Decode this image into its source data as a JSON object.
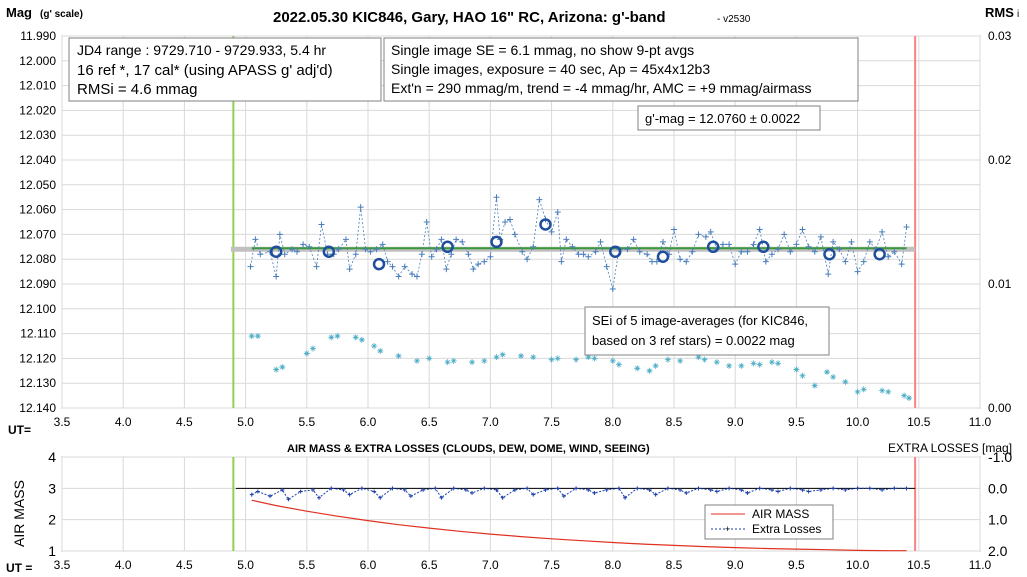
{
  "top": {
    "title": "2022.05.30 KIC846, Gary, HAO 16\" RC, Arizona: g'-band",
    "version": "- v2530",
    "ylabel_left": "Mag",
    "ylabel_left_sub": "(g' scale)",
    "ylabel_right": "RMS",
    "ylabel_right_sub": "i",
    "xlabel": "UT=",
    "info_left": [
      "JD4 range : 9729.710 - 9729.933,  5.4 hr",
      "16 ref *, 17 cal* (using APASS g' adj'd)",
      "RMSi = 4.6 mmag"
    ],
    "info_mid": [
      "Single image SE = 6.1 mmag, no show  9-pt avgs",
      "Single images, exposure = 40 sec, Ap = 45x4x12b3",
      "Ext'n = 290 mmag/m, trend = -4 mmag/hr, AMC = +9 mmag/airmass"
    ],
    "gmag_box": "g'-mag = 12.0760 ± 0.0022",
    "sei_box": [
      "SEi of 5 image-averages (for KIC846,",
      "based on 3 ref stars) = 0.0022 mag"
    ]
  },
  "bottom": {
    "title": "AIR MASS & EXTRA LOSSES (CLOUDS, DEW, DOME, WIND, SEEING)",
    "right_title": "EXTRA LOSSES [mag]",
    "ylabel_left": "AIR MASS",
    "xlabel": "UT =",
    "legend": [
      "AIR MASS",
      "Extra Losses"
    ]
  },
  "colors": {
    "single_points": "#4a7ebb",
    "averages": "#1f4e9c",
    "rms": "#4bacc6",
    "level_line": "#3a9a3a",
    "level_band": "#c0c0c0",
    "start_line": "#92d050",
    "end_line": "#ff8080",
    "airmass": "#e03020",
    "losses": "#1c3faa"
  },
  "chart_data": [
    {
      "type": "scatter",
      "title": "2022.05.30 KIC846, Gary, HAO 16\" RC, Arizona: g'-band",
      "xlabel": "UT=",
      "ylabel": "Mag (g' scale)",
      "ylabel_right": "RMS i",
      "xlim": [
        3.5,
        11.0
      ],
      "ylim": [
        12.14,
        11.99
      ],
      "y_inverted": true,
      "ylim_right": [
        0.0,
        0.03
      ],
      "x_ticks": [
        "3.5",
        "4.0",
        "4.5",
        "5.0",
        "5.5",
        "6.0",
        "6.5",
        "7.0",
        "7.5",
        "8.0",
        "8.5",
        "9.0",
        "9.5",
        "10.0",
        "10.5",
        "11.0"
      ],
      "y_ticks": [
        "11.990",
        "12.000",
        "12.010",
        "12.020",
        "12.030",
        "12.040",
        "12.050",
        "12.060",
        "12.070",
        "12.080",
        "12.090",
        "12.100",
        "12.110",
        "12.120",
        "12.130",
        "12.140"
      ],
      "y_right_ticks": [
        "0.00",
        "0.01",
        "0.02",
        "0.03"
      ],
      "grid": true,
      "start_ut": 4.9,
      "end_ut": 10.47,
      "mean_mag": 12.076,
      "series": [
        {
          "kind": "single images",
          "x": [
            5.04,
            5.08,
            5.12,
            5.2,
            5.25,
            5.28,
            5.32,
            5.38,
            5.42,
            5.47,
            5.52,
            5.58,
            5.62,
            5.67,
            5.72,
            5.76,
            5.82,
            5.85,
            5.9,
            5.94,
            5.98,
            6.02,
            6.07,
            6.12,
            6.16,
            6.2,
            6.25,
            6.3,
            6.36,
            6.4,
            6.44,
            6.48,
            6.52,
            6.56,
            6.6,
            6.64,
            6.68,
            6.72,
            6.77,
            6.82,
            6.86,
            6.9,
            6.95,
            7.0,
            7.05,
            7.08,
            7.12,
            7.16,
            7.2,
            7.26,
            7.3,
            7.35,
            7.4,
            7.45,
            7.5,
            7.55,
            7.58,
            7.62,
            7.67,
            7.72,
            7.76,
            7.8,
            7.86,
            7.9,
            7.95,
            8.0,
            8.05,
            8.12,
            8.17,
            8.22,
            8.28,
            8.32,
            8.36,
            8.41,
            8.46,
            8.5,
            8.55,
            8.6,
            8.65,
            8.7,
            8.76,
            8.8,
            8.85,
            8.9,
            8.95,
            9.0,
            9.05,
            9.1,
            9.15,
            9.2,
            9.25,
            9.3,
            9.35,
            9.4,
            9.45,
            9.5,
            9.55,
            9.6,
            9.65,
            9.7,
            9.76,
            9.8,
            9.85,
            9.9,
            9.95,
            10.0,
            10.05,
            10.1,
            10.15,
            10.2,
            10.25,
            10.3,
            10.36,
            10.4
          ],
          "y": [
            12.083,
            12.072,
            12.078,
            12.077,
            12.087,
            12.07,
            12.078,
            12.076,
            12.077,
            12.074,
            12.075,
            12.083,
            12.066,
            12.078,
            12.078,
            12.076,
            12.072,
            12.084,
            12.078,
            12.059,
            12.076,
            12.077,
            12.076,
            12.074,
            12.081,
            12.083,
            12.087,
            12.083,
            12.086,
            12.087,
            12.078,
            12.065,
            12.079,
            12.076,
            12.072,
            12.084,
            12.078,
            12.072,
            12.073,
            12.078,
            12.084,
            12.082,
            12.081,
            12.079,
            12.055,
            12.072,
            12.065,
            12.064,
            12.07,
            12.077,
            12.08,
            12.075,
            12.056,
            12.064,
            12.069,
            12.061,
            12.081,
            12.072,
            12.075,
            12.078,
            12.078,
            12.079,
            12.077,
            12.073,
            12.083,
            12.092,
            12.076,
            12.076,
            12.072,
            12.077,
            12.078,
            12.081,
            12.081,
            12.073,
            12.078,
            12.068,
            12.08,
            12.081,
            12.077,
            12.07,
            12.071,
            12.069,
            12.076,
            12.074,
            12.074,
            12.082,
            12.077,
            12.077,
            12.074,
            12.068,
            12.081,
            12.078,
            12.076,
            12.07,
            12.077,
            12.074,
            12.068,
            12.075,
            12.077,
            12.071,
            12.086,
            12.073,
            12.076,
            12.081,
            12.073,
            12.085,
            12.081,
            12.073,
            12.076,
            12.069,
            12.079,
            12.077,
            12.082,
            12.067
          ]
        },
        {
          "kind": "averages",
          "x": [
            5.25,
            5.68,
            6.09,
            6.65,
            7.05,
            7.45,
            8.02,
            8.41,
            8.82,
            9.23,
            9.77,
            10.18
          ],
          "y": [
            12.077,
            12.077,
            12.082,
            12.075,
            12.073,
            12.066,
            12.077,
            12.079,
            12.075,
            12.075,
            12.078,
            12.078
          ]
        },
        {
          "kind": "RMS",
          "x": [
            5.05,
            5.1,
            5.25,
            5.3,
            5.5,
            5.55,
            5.7,
            5.75,
            5.9,
            5.95,
            6.05,
            6.1,
            6.25,
            6.4,
            6.5,
            6.65,
            6.7,
            6.85,
            6.95,
            7.05,
            7.1,
            7.25,
            7.35,
            7.5,
            7.55,
            7.7,
            7.8,
            7.85,
            8.0,
            8.05,
            8.2,
            8.3,
            8.35,
            8.45,
            8.55,
            8.7,
            8.75,
            8.85,
            8.95,
            9.05,
            9.15,
            9.2,
            9.3,
            9.35,
            9.5,
            9.55,
            9.65,
            9.75,
            9.8,
            9.9,
            10.0,
            10.05,
            10.2,
            10.25,
            10.38,
            10.42
          ],
          "y": [
            0.0058,
            0.0058,
            0.0031,
            0.0033,
            0.0044,
            0.0048,
            0.0057,
            0.0058,
            0.0057,
            0.0055,
            0.005,
            0.0046,
            0.0042,
            0.0038,
            0.004,
            0.0037,
            0.0038,
            0.0037,
            0.0038,
            0.0041,
            0.0043,
            0.0042,
            0.0041,
            0.0039,
            0.004,
            0.0039,
            0.0041,
            0.004,
            0.0038,
            0.0035,
            0.0032,
            0.003,
            0.0034,
            0.0039,
            0.0038,
            0.0041,
            0.0039,
            0.0037,
            0.0034,
            0.0034,
            0.0036,
            0.0035,
            0.0037,
            0.0036,
            0.0031,
            0.0026,
            0.0018,
            0.0029,
            0.0025,
            0.0021,
            0.0013,
            0.0015,
            0.0014,
            0.0013,
            0.001,
            0.0008
          ]
        }
      ]
    },
    {
      "type": "line",
      "title": "AIR MASS & EXTRA LOSSES (CLOUDS, DEW, DOME, WIND, SEEING)",
      "xlabel": "UT =",
      "ylabel": "AIR MASS",
      "ylabel_right": "EXTRA LOSSES [mag]",
      "xlim": [
        3.5,
        11.0
      ],
      "ylim": [
        1,
        4
      ],
      "ylim_right": [
        2.0,
        -1.0
      ],
      "x_ticks": [
        "3.5",
        "4.0",
        "4.5",
        "5.0",
        "5.5",
        "6.0",
        "6.5",
        "7.0",
        "7.5",
        "8.0",
        "8.5",
        "9.0",
        "9.5",
        "10.0",
        "10.5",
        "11.0"
      ],
      "y_ticks": [
        "1",
        "2",
        "3",
        "4"
      ],
      "y_right_ticks": [
        "-1.0",
        "0.0",
        "1.0",
        "2.0"
      ],
      "grid": true,
      "legend_position": "lower-right",
      "start_ut": 4.9,
      "end_ut": 10.47,
      "series": [
        {
          "name": "AIR MASS",
          "x": [
            5.05,
            5.25,
            5.5,
            5.75,
            6.0,
            6.25,
            6.5,
            6.75,
            7.0,
            7.25,
            7.5,
            7.75,
            8.0,
            8.25,
            8.5,
            8.75,
            9.0,
            9.25,
            9.5,
            9.75,
            10.0,
            10.25,
            10.4
          ],
          "y": [
            2.62,
            2.45,
            2.27,
            2.11,
            1.97,
            1.84,
            1.73,
            1.63,
            1.54,
            1.46,
            1.39,
            1.33,
            1.27,
            1.22,
            1.18,
            1.14,
            1.11,
            1.08,
            1.06,
            1.04,
            1.02,
            1.01,
            1.01
          ]
        },
        {
          "name": "Extra Losses",
          "x": [
            5.05,
            5.1,
            5.2,
            5.3,
            5.35,
            5.45,
            5.55,
            5.6,
            5.7,
            5.8,
            5.85,
            5.95,
            6.05,
            6.1,
            6.2,
            6.3,
            6.35,
            6.45,
            6.55,
            6.6,
            6.7,
            6.8,
            6.85,
            6.95,
            7.05,
            7.1,
            7.2,
            7.3,
            7.35,
            7.45,
            7.55,
            7.6,
            7.7,
            7.8,
            7.85,
            7.95,
            8.05,
            8.1,
            8.2,
            8.3,
            8.35,
            8.45,
            8.55,
            8.6,
            8.7,
            8.8,
            8.85,
            8.95,
            9.05,
            9.1,
            9.2,
            9.3,
            9.35,
            9.45,
            9.55,
            9.6,
            9.7,
            9.8,
            9.9,
            10.0,
            10.1,
            10.2,
            10.3,
            10.4
          ],
          "y": [
            0.2,
            0.1,
            0.25,
            0.05,
            0.35,
            0.1,
            0.05,
            0.3,
            0.0,
            0.05,
            0.2,
            0.0,
            0.1,
            0.3,
            0.0,
            0.05,
            0.25,
            0.05,
            0.0,
            0.3,
            0.0,
            0.05,
            0.15,
            0.0,
            0.05,
            0.3,
            0.05,
            0.0,
            0.2,
            0.05,
            0.0,
            0.25,
            0.0,
            0.05,
            0.15,
            0.05,
            0.0,
            0.3,
            0.0,
            0.05,
            0.2,
            0.0,
            0.05,
            0.15,
            0.0,
            0.05,
            0.1,
            0.0,
            0.05,
            0.15,
            0.0,
            0.05,
            0.1,
            0.0,
            0.05,
            0.1,
            0.05,
            0.0,
            0.05,
            0.0,
            0.0,
            0.05,
            0.0,
            0.0
          ]
        }
      ]
    }
  ]
}
